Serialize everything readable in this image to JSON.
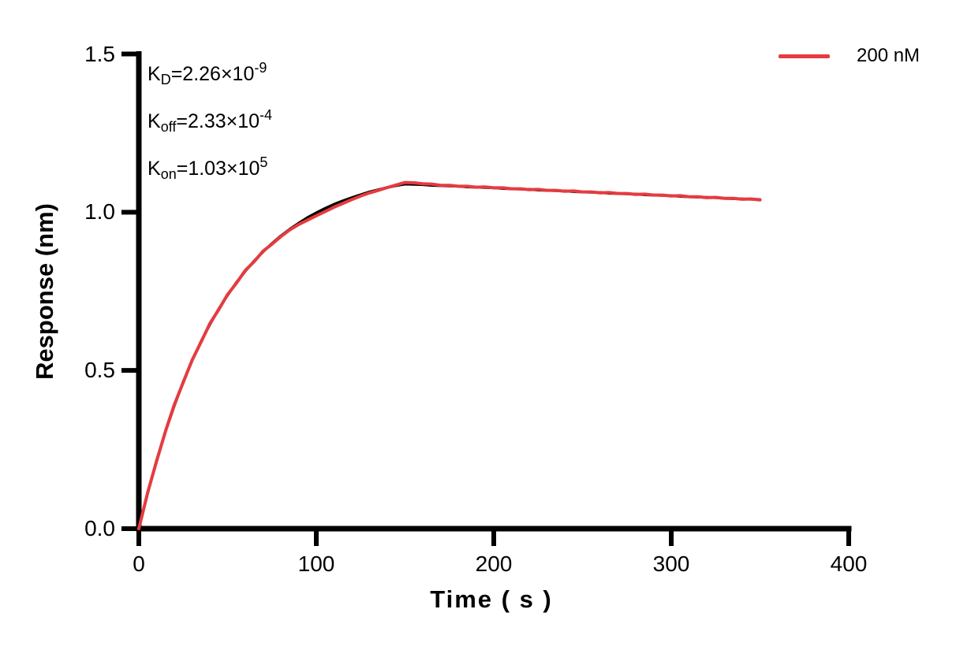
{
  "figure": {
    "annotation": {
      "lines": [
        {
          "base": "K",
          "sub": "D",
          "eq": "=2.26×10",
          "sup": "-9"
        },
        {
          "base": "K",
          "sub": "off",
          "eq": "=2.33×10",
          "sup": "-4"
        },
        {
          "base": "K",
          "sub": "on",
          "eq": "=1.03×10",
          "sup": "5"
        }
      ]
    },
    "legend": {
      "label": "200 nM",
      "color": "#e63b40"
    },
    "x_axis": {
      "label": "Time ( s )",
      "tick_labels": [
        "0",
        "100",
        "200",
        "300",
        "400"
      ]
    },
    "y_axis": {
      "label": "Response (nm)",
      "tick_labels": [
        "0.0",
        "0.5",
        "1.0",
        "1.5"
      ]
    },
    "colors": {
      "axis": "#000000",
      "fit_line": "#000000",
      "measured_line": "#e63b40"
    }
  },
  "chart_data": {
    "type": "line",
    "title": "",
    "xlabel": "Time ( s )",
    "ylabel": "Response (nm)",
    "xlim": [
      0,
      400
    ],
    "ylim": [
      0,
      1.5
    ],
    "x_ticks": [
      0,
      100,
      200,
      300,
      400
    ],
    "y_ticks": [
      0,
      0.5,
      1.0,
      1.5
    ],
    "grid": false,
    "legend_position": "top-right",
    "kinetics": {
      "KD": 2.26e-09,
      "Koff": 0.000233,
      "Kon": 103000.0,
      "concentration_label": "200 nM"
    },
    "x": [
      0,
      5,
      10,
      15,
      20,
      25,
      30,
      35,
      40,
      45,
      50,
      55,
      60,
      65,
      70,
      75,
      80,
      85,
      90,
      95,
      100,
      105,
      110,
      115,
      120,
      125,
      130,
      135,
      140,
      145,
      150,
      155,
      160,
      165,
      170,
      175,
      180,
      185,
      190,
      195,
      200,
      205,
      210,
      215,
      220,
      225,
      230,
      235,
      240,
      245,
      250,
      255,
      260,
      265,
      270,
      275,
      280,
      285,
      290,
      295,
      300,
      305,
      310,
      315,
      320,
      325,
      330,
      335,
      340,
      345,
      350
    ],
    "series": [
      {
        "name": "fit",
        "color": "#000000",
        "width": 3.5,
        "values": [
          0.0,
          0.113,
          0.215,
          0.307,
          0.389,
          0.464,
          0.531,
          0.591,
          0.645,
          0.694,
          0.738,
          0.778,
          0.814,
          0.846,
          0.875,
          0.901,
          0.925,
          0.946,
          0.965,
          0.983,
          0.998,
          1.012,
          1.025,
          1.036,
          1.046,
          1.055,
          1.064,
          1.071,
          1.078,
          1.084,
          1.089,
          1.088,
          1.087,
          1.085,
          1.084,
          1.083,
          1.082,
          1.08,
          1.079,
          1.078,
          1.077,
          1.075,
          1.074,
          1.073,
          1.072,
          1.07,
          1.069,
          1.068,
          1.067,
          1.065,
          1.064,
          1.063,
          1.062,
          1.06,
          1.059,
          1.058,
          1.057,
          1.055,
          1.054,
          1.053,
          1.052,
          1.05,
          1.049,
          1.048,
          1.047,
          1.046,
          1.044,
          1.043,
          1.042,
          1.041,
          1.04
        ]
      },
      {
        "name": "200 nM",
        "color": "#e63b40",
        "width": 4,
        "values": [
          0.0,
          0.115,
          0.213,
          0.308,
          0.392,
          0.462,
          0.532,
          0.589,
          0.648,
          0.692,
          0.74,
          0.776,
          0.816,
          0.844,
          0.877,
          0.899,
          0.923,
          0.944,
          0.961,
          0.975,
          0.989,
          1.002,
          1.016,
          1.028,
          1.04,
          1.051,
          1.061,
          1.069,
          1.078,
          1.086,
          1.094,
          1.093,
          1.09,
          1.089,
          1.085,
          1.085,
          1.082,
          1.082,
          1.079,
          1.08,
          1.077,
          1.077,
          1.074,
          1.074,
          1.071,
          1.072,
          1.069,
          1.069,
          1.066,
          1.067,
          1.064,
          1.064,
          1.061,
          1.062,
          1.059,
          1.059,
          1.056,
          1.057,
          1.054,
          1.054,
          1.051,
          1.052,
          1.049,
          1.049,
          1.046,
          1.047,
          1.044,
          1.044,
          1.041,
          1.042,
          1.039
        ]
      }
    ]
  }
}
